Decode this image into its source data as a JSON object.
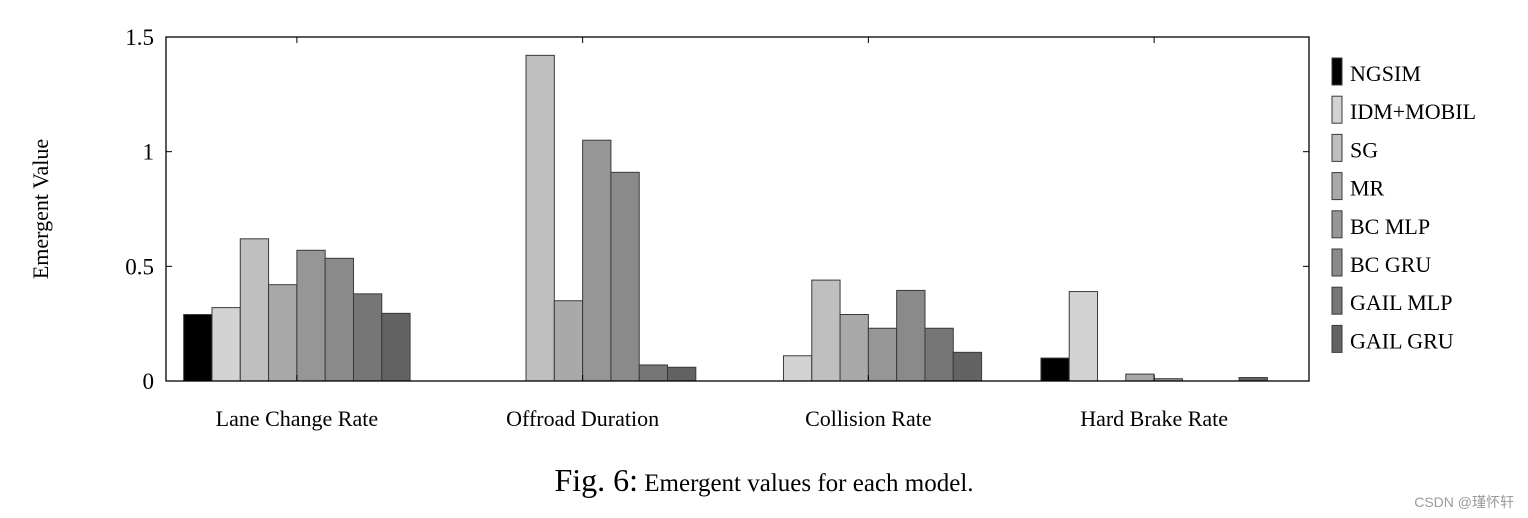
{
  "chart_data": {
    "type": "bar",
    "title": "",
    "xlabel": "",
    "ylabel": "Emergent Value",
    "ylim": [
      0,
      1.5
    ],
    "yticks": [
      0,
      0.5,
      1,
      1.5
    ],
    "ytick_labels": [
      "0",
      "0.5",
      "1",
      "1.5"
    ],
    "categories": [
      "Lane Change Rate",
      "Offroad Duration",
      "Collision Rate",
      "Hard Brake Rate"
    ],
    "legend_position": "right",
    "series": [
      {
        "name": "NGSIM",
        "color": "#000000",
        "values": [
          0.29,
          0.0,
          0.0,
          0.1
        ]
      },
      {
        "name": "IDM+MOBIL",
        "color": "#d3d3d3",
        "values": [
          0.32,
          0.0,
          0.11,
          0.39
        ]
      },
      {
        "name": "SG",
        "color": "#bfbfbf",
        "values": [
          0.62,
          1.42,
          0.44,
          0.0
        ]
      },
      {
        "name": "MR",
        "color": "#a9a9a9",
        "values": [
          0.42,
          0.35,
          0.29,
          0.03
        ]
      },
      {
        "name": "BC MLP",
        "color": "#969696",
        "values": [
          0.57,
          1.05,
          0.23,
          0.01
        ]
      },
      {
        "name": "BC GRU",
        "color": "#8a8a8a",
        "values": [
          0.535,
          0.91,
          0.395,
          0.0
        ]
      },
      {
        "name": "GAIL MLP",
        "color": "#767676",
        "values": [
          0.38,
          0.07,
          0.23,
          0.0
        ]
      },
      {
        "name": "GAIL GRU",
        "color": "#636363",
        "values": [
          0.295,
          0.06,
          0.125,
          0.015
        ]
      }
    ]
  },
  "caption": {
    "label": "Fig. 6:",
    "text": "Emergent values for each model."
  },
  "watermark": "CSDN @瑾怀轩"
}
